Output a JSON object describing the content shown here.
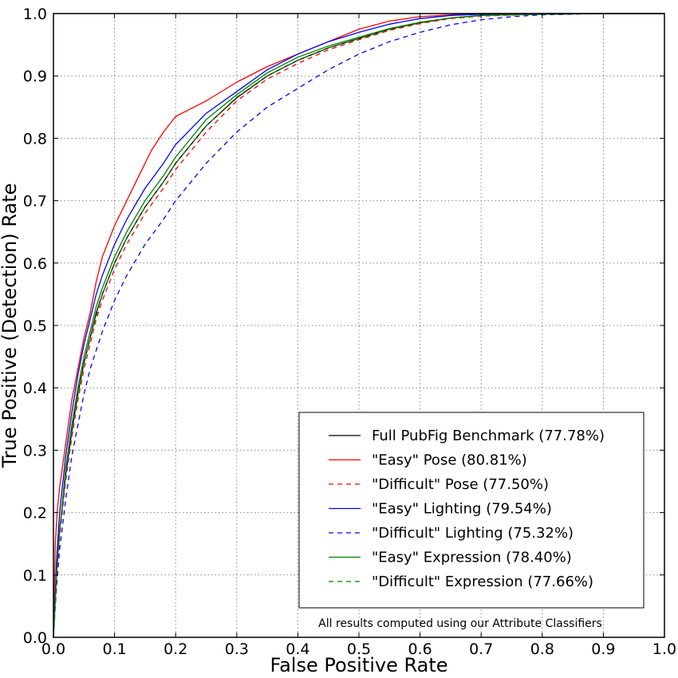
{
  "chart_data": {
    "type": "line",
    "title": "",
    "xlabel": "False Positive Rate",
    "ylabel": "True Positive (Detection) Rate",
    "xlim": [
      0.0,
      1.0
    ],
    "ylim": [
      0.0,
      1.0
    ],
    "xticks": [
      "0.0",
      "0.1",
      "0.2",
      "0.3",
      "0.4",
      "0.5",
      "0.6",
      "0.7",
      "0.8",
      "0.9",
      "1.0"
    ],
    "yticks": [
      "0.0",
      "0.1",
      "0.2",
      "0.3",
      "0.4",
      "0.5",
      "0.6",
      "0.7",
      "0.8",
      "0.9",
      "1.0"
    ],
    "grid": true,
    "legend_position": "bottom-right",
    "annotation": "All results computed using our Attribute Classifiers",
    "series": [
      {
        "name": "Full PubFig Benchmark (77.78%)",
        "color": "#000000",
        "dashed": false,
        "x": [
          0,
          0.005,
          0.01,
          0.02,
          0.03,
          0.04,
          0.05,
          0.06,
          0.07,
          0.08,
          0.1,
          0.12,
          0.15,
          0.18,
          0.2,
          0.25,
          0.3,
          0.35,
          0.4,
          0.45,
          0.5,
          0.55,
          0.6,
          0.65,
          0.7,
          0.8,
          0.9,
          1.0
        ],
        "y": [
          0,
          0.1,
          0.17,
          0.26,
          0.33,
          0.39,
          0.44,
          0.48,
          0.52,
          0.55,
          0.6,
          0.64,
          0.69,
          0.73,
          0.76,
          0.82,
          0.865,
          0.9,
          0.925,
          0.945,
          0.96,
          0.975,
          0.985,
          0.993,
          0.997,
          0.999,
          1.0,
          1.0
        ]
      },
      {
        "name": "\"Easy\" Pose (80.81%)",
        "color": "#ff0000",
        "dashed": false,
        "x": [
          0,
          0.003,
          0.006,
          0.01,
          0.02,
          0.03,
          0.04,
          0.05,
          0.06,
          0.07,
          0.08,
          0.1,
          0.12,
          0.14,
          0.16,
          0.18,
          0.2,
          0.22,
          0.25,
          0.3,
          0.35,
          0.4,
          0.45,
          0.5,
          0.55,
          0.6,
          0.65,
          0.7,
          0.8,
          0.9,
          1.0
        ],
        "y": [
          0,
          0.15,
          0.2,
          0.24,
          0.31,
          0.38,
          0.43,
          0.48,
          0.52,
          0.57,
          0.61,
          0.66,
          0.7,
          0.74,
          0.78,
          0.81,
          0.835,
          0.845,
          0.86,
          0.89,
          0.915,
          0.935,
          0.955,
          0.975,
          0.988,
          0.995,
          0.998,
          1.0,
          1.0,
          1.0,
          1.0
        ]
      },
      {
        "name": "\"Difficult\" Pose (77.50%)",
        "color": "#ff0000",
        "dashed": true,
        "x": [
          0,
          0.005,
          0.01,
          0.02,
          0.03,
          0.04,
          0.05,
          0.06,
          0.07,
          0.08,
          0.1,
          0.12,
          0.15,
          0.18,
          0.2,
          0.25,
          0.3,
          0.35,
          0.4,
          0.45,
          0.5,
          0.55,
          0.6,
          0.65,
          0.7,
          0.8,
          0.9,
          1.0
        ],
        "y": [
          0,
          0.09,
          0.16,
          0.25,
          0.32,
          0.38,
          0.43,
          0.47,
          0.51,
          0.54,
          0.59,
          0.63,
          0.68,
          0.72,
          0.75,
          0.81,
          0.86,
          0.895,
          0.92,
          0.942,
          0.958,
          0.973,
          0.984,
          0.992,
          0.996,
          0.999,
          1.0,
          1.0
        ]
      },
      {
        "name": "\"Easy\" Lighting (79.54%)",
        "color": "#0000ff",
        "dashed": false,
        "x": [
          0,
          0.005,
          0.01,
          0.02,
          0.03,
          0.04,
          0.05,
          0.06,
          0.07,
          0.08,
          0.1,
          0.12,
          0.15,
          0.18,
          0.2,
          0.22,
          0.25,
          0.3,
          0.35,
          0.4,
          0.45,
          0.5,
          0.55,
          0.6,
          0.65,
          0.7,
          0.8,
          0.9,
          1.0
        ],
        "y": [
          0,
          0.12,
          0.2,
          0.29,
          0.36,
          0.42,
          0.47,
          0.51,
          0.55,
          0.58,
          0.63,
          0.67,
          0.72,
          0.76,
          0.79,
          0.81,
          0.84,
          0.875,
          0.91,
          0.935,
          0.955,
          0.97,
          0.983,
          0.992,
          0.997,
          0.999,
          1.0,
          1.0,
          1.0
        ]
      },
      {
        "name": "\"Difficult\" Lighting (75.32%)",
        "color": "#0000ff",
        "dashed": true,
        "x": [
          0,
          0.005,
          0.01,
          0.02,
          0.03,
          0.04,
          0.05,
          0.06,
          0.07,
          0.08,
          0.1,
          0.12,
          0.15,
          0.18,
          0.2,
          0.25,
          0.3,
          0.35,
          0.4,
          0.45,
          0.5,
          0.55,
          0.6,
          0.65,
          0.7,
          0.75,
          0.8,
          0.9,
          1.0
        ],
        "y": [
          0,
          0.08,
          0.14,
          0.22,
          0.29,
          0.34,
          0.39,
          0.43,
          0.46,
          0.49,
          0.54,
          0.58,
          0.63,
          0.67,
          0.7,
          0.76,
          0.81,
          0.85,
          0.88,
          0.91,
          0.935,
          0.955,
          0.97,
          0.982,
          0.99,
          0.995,
          0.998,
          1.0,
          1.0
        ]
      },
      {
        "name": "\"Easy\" Expression (78.40%)",
        "color": "#008000",
        "dashed": false,
        "x": [
          0,
          0.005,
          0.01,
          0.02,
          0.03,
          0.04,
          0.05,
          0.06,
          0.07,
          0.08,
          0.1,
          0.12,
          0.15,
          0.18,
          0.2,
          0.25,
          0.3,
          0.35,
          0.4,
          0.45,
          0.5,
          0.55,
          0.6,
          0.65,
          0.7,
          0.8,
          0.9,
          1.0
        ],
        "y": [
          0,
          0.1,
          0.17,
          0.27,
          0.34,
          0.4,
          0.45,
          0.49,
          0.53,
          0.56,
          0.61,
          0.65,
          0.7,
          0.74,
          0.77,
          0.83,
          0.87,
          0.905,
          0.93,
          0.948,
          0.962,
          0.976,
          0.986,
          0.993,
          0.997,
          0.999,
          1.0,
          1.0
        ]
      },
      {
        "name": "\"Difficult\" Expression (77.66%)",
        "color": "#008000",
        "dashed": true,
        "x": [
          0,
          0.005,
          0.01,
          0.02,
          0.03,
          0.04,
          0.05,
          0.06,
          0.07,
          0.08,
          0.1,
          0.12,
          0.15,
          0.18,
          0.2,
          0.25,
          0.3,
          0.35,
          0.4,
          0.45,
          0.5,
          0.55,
          0.6,
          0.65,
          0.7,
          0.8,
          0.9,
          1.0
        ],
        "y": [
          0,
          0.1,
          0.17,
          0.26,
          0.33,
          0.39,
          0.44,
          0.48,
          0.515,
          0.55,
          0.6,
          0.64,
          0.69,
          0.73,
          0.76,
          0.82,
          0.866,
          0.9,
          0.925,
          0.945,
          0.96,
          0.975,
          0.985,
          0.993,
          0.997,
          0.999,
          1.0,
          1.0
        ]
      }
    ]
  }
}
